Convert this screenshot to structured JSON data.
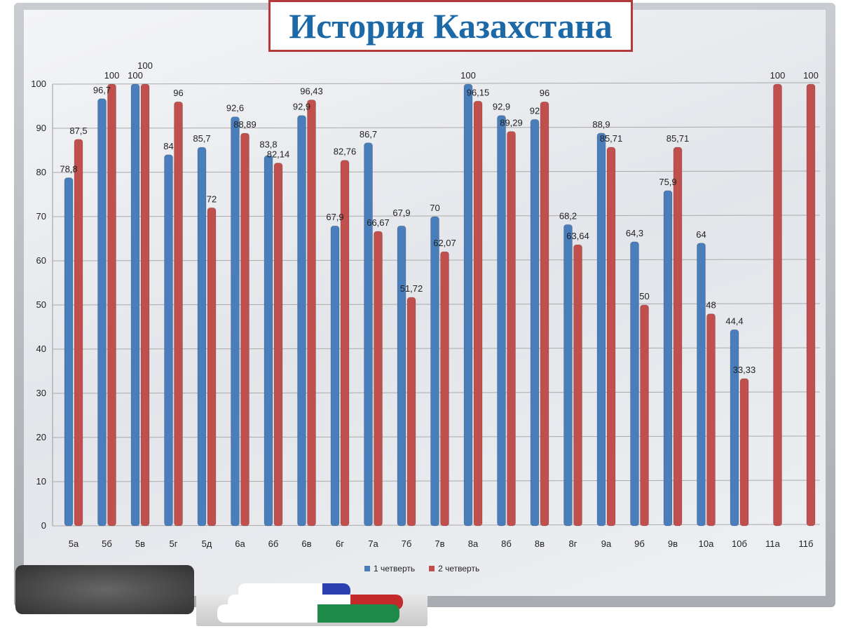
{
  "title": "История Казахстана",
  "chart_data": {
    "type": "bar",
    "title": "История Казахстана",
    "categories": [
      "5а",
      "5б",
      "5в",
      "5г",
      "5д",
      "6а",
      "6б",
      "6в",
      "6г",
      "7а",
      "7б",
      "7в",
      "8а",
      "8б",
      "8в",
      "8г",
      "9а",
      "9б",
      "9в",
      "10а",
      "10б",
      "11а",
      "11б"
    ],
    "series": [
      {
        "name": "1 четверть",
        "color": "#4a7ebb",
        "values": [
          78.8,
          96.7,
          100,
          84,
          85.7,
          92.6,
          83.8,
          92.9,
          67.9,
          86.7,
          67.9,
          70,
          100,
          92.9,
          92,
          68.2,
          88.9,
          64.3,
          75.9,
          64,
          44.4,
          null,
          null
        ],
        "labels": [
          "78,8",
          "96,7",
          "100",
          "84",
          "85,7",
          "92,6",
          "83,8",
          "92,9",
          "67,9",
          "86,7",
          "67,9",
          "70",
          "100",
          "92,9",
          "92",
          "68,2",
          "88,9",
          "64,3",
          "75,9",
          "64",
          "44,4",
          "",
          ""
        ]
      },
      {
        "name": "2 четверть",
        "color": "#c0504d",
        "values": [
          87.5,
          100,
          100,
          96,
          72,
          88.89,
          82.14,
          96.43,
          82.76,
          66.67,
          51.72,
          62.07,
          96.15,
          89.29,
          96,
          63.64,
          85.71,
          50,
          85.71,
          48,
          33.33,
          100,
          100
        ],
        "labels": [
          "87,5",
          "100",
          "100",
          "96",
          "72",
          "88,89",
          "82,14",
          "96,43",
          "82,76",
          "66,67",
          "51,72",
          "62,07",
          "96,15",
          "89,29",
          "96",
          "63,64",
          "85,71",
          "50",
          "85,71",
          "48",
          "33,33",
          "100",
          "100"
        ]
      }
    ],
    "ylim": [
      0,
      100
    ],
    "yticks": [
      "0",
      "10",
      "20",
      "30",
      "40",
      "50",
      "60",
      "70",
      "80",
      "90",
      "100"
    ],
    "grid": true,
    "legend": "bottom"
  }
}
